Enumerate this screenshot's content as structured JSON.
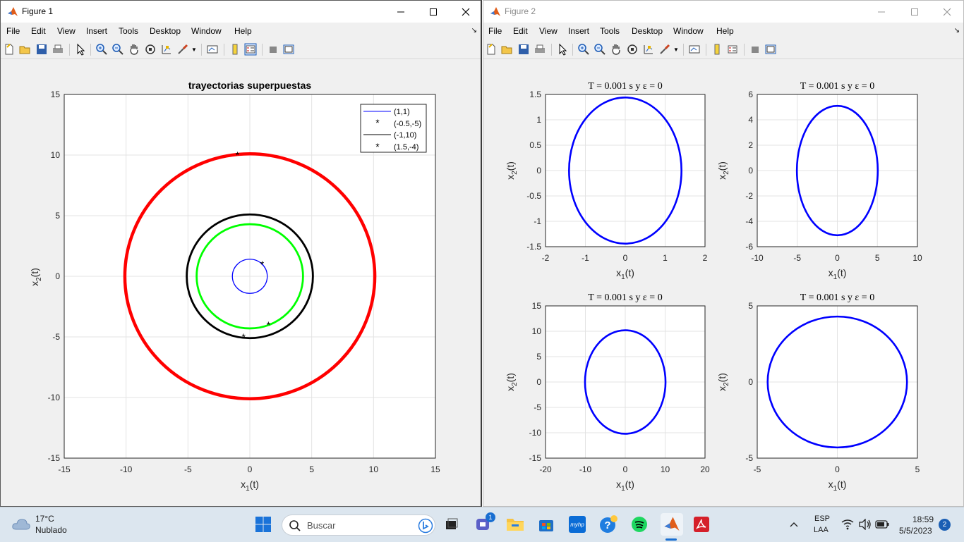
{
  "windows": [
    {
      "title": "Figure 1",
      "menu": [
        "File",
        "Edit",
        "View",
        "Insert",
        "Tools",
        "Desktop",
        "Window",
        "Help"
      ],
      "axes": {
        "title": "trayectorias superpuestas",
        "xlabel": "x",
        "xlabel_sub": "1",
        "xlabel_suffix": "(t)",
        "ylabel": "x",
        "ylabel_sub": "2",
        "ylabel_suffix": "(t)",
        "xticks": [
          "-15",
          "-10",
          "-5",
          "0",
          "5",
          "10",
          "15"
        ],
        "yticks": [
          "15",
          "10",
          "5",
          "0",
          "-5",
          "-10",
          "-15"
        ],
        "legend": [
          "(1,1)",
          "(-0.5,-5)",
          "(-1,10)",
          "(1.5,-4)"
        ]
      }
    },
    {
      "title": "Figure 2",
      "menu": [
        "File",
        "Edit",
        "View",
        "Insert",
        "Tools",
        "Desktop",
        "Window",
        "Help"
      ],
      "subplots": [
        {
          "title": "T = 0.001 s y ε = 0",
          "xticks": [
            "-2",
            "-1",
            "0",
            "1",
            "2"
          ],
          "yticks": [
            "1.5",
            "1",
            "0.5",
            "0",
            "-0.5",
            "-1",
            "-1.5"
          ]
        },
        {
          "title": "T = 0.001 s y ε = 0",
          "xticks": [
            "-10",
            "-5",
            "0",
            "5",
            "10"
          ],
          "yticks": [
            "6",
            "4",
            "2",
            "0",
            "-2",
            "-4",
            "-6"
          ]
        },
        {
          "title": "T = 0.001 s y ε = 0",
          "xticks": [
            "-20",
            "-10",
            "0",
            "10",
            "20"
          ],
          "yticks": [
            "15",
            "10",
            "5",
            "0",
            "-5",
            "-10",
            "-15"
          ]
        },
        {
          "title": "T = 0.001 s y ε = 0",
          "xticks": [
            "-5",
            "0",
            "5"
          ],
          "yticks": [
            "5",
            "0",
            "-5"
          ]
        }
      ],
      "xlabel": "x",
      "xlabel_sub": "1",
      "xlabel_suffix": "(t)",
      "ylabel": "x",
      "ylabel_sub": "2",
      "ylabel_suffix": "(t)"
    }
  ],
  "chart_data": [
    {
      "type": "line",
      "title": "trayectorias superpuestas",
      "xlim": [
        -15,
        15
      ],
      "ylim": [
        -15,
        15
      ],
      "grid": true,
      "legend_position": "top-right",
      "series": [
        {
          "name": "(1,1)",
          "shape": "circle",
          "radius": 1.41,
          "color": "#0000ff"
        },
        {
          "name": "(-0.5,-5)",
          "shape": "circle",
          "radius": 5.1,
          "color": "#000000"
        },
        {
          "name": "(-1,10)",
          "shape": "circle",
          "radius": 10.1,
          "color": "#ff0000"
        },
        {
          "name": "(1.5,-4)",
          "shape": "circle",
          "radius": 4.3,
          "color": "#00ff00"
        }
      ],
      "initial_points": [
        [
          1,
          1
        ],
        [
          -0.5,
          -5
        ],
        [
          -1,
          10
        ],
        [
          1.5,
          -4
        ]
      ]
    },
    {
      "type": "line",
      "title": "T = 0.001 s y ε = 0",
      "xlim": [
        -2,
        2
      ],
      "ylim": [
        -1.5,
        1.5
      ],
      "grid": true,
      "series": [
        {
          "shape": "ellipse",
          "rx": 1.41,
          "ry": 1.44,
          "color": "#0000ff"
        }
      ]
    },
    {
      "type": "line",
      "title": "T = 0.001 s y ε = 0",
      "xlim": [
        -10,
        10
      ],
      "ylim": [
        -6,
        6
      ],
      "grid": true,
      "series": [
        {
          "shape": "ellipse",
          "rx": 5.05,
          "ry": 5.1,
          "color": "#0000ff"
        }
      ]
    },
    {
      "type": "line",
      "title": "T = 0.001 s y ε = 0",
      "xlim": [
        -20,
        20
      ],
      "ylim": [
        -15,
        15
      ],
      "grid": true,
      "series": [
        {
          "shape": "ellipse",
          "rx": 10.1,
          "ry": 10.2,
          "color": "#0000ff"
        }
      ]
    },
    {
      "type": "line",
      "title": "T = 0.001 s y ε = 0",
      "xlim": [
        -5,
        5
      ],
      "ylim": [
        -5,
        5
      ],
      "grid": true,
      "series": [
        {
          "shape": "ellipse",
          "rx": 4.35,
          "ry": 4.3,
          "color": "#0000ff"
        }
      ]
    }
  ],
  "taskbar": {
    "weather_temp": "17°C",
    "weather_desc": "Nublado",
    "search_placeholder": "Buscar",
    "teams_badge": "1",
    "lang": "ESP",
    "lang2": "LAA",
    "time": "18:59",
    "date": "5/5/2023",
    "notif_count": "2"
  }
}
